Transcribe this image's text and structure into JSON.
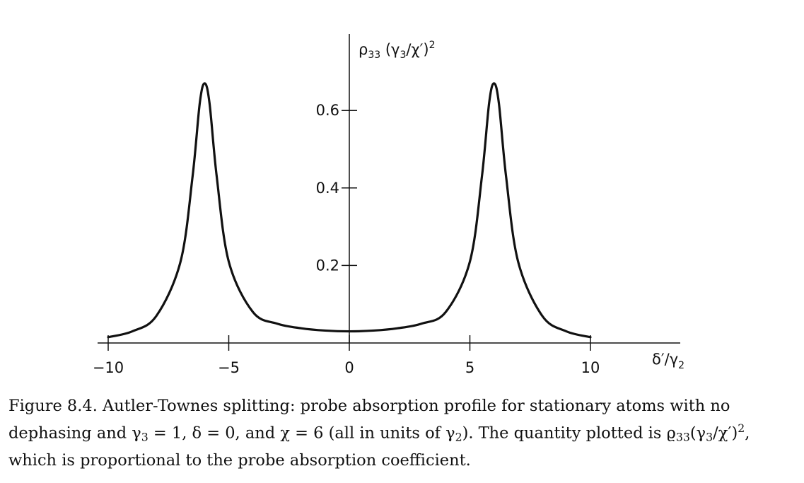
{
  "chart_data": {
    "type": "line",
    "x": [
      -10,
      -9,
      -8,
      -7,
      -6.5,
      -6.2,
      -6,
      -5.8,
      -5.5,
      -5,
      -4,
      -3,
      -2,
      -1,
      0,
      1,
      2,
      3,
      4,
      5,
      5.5,
      5.8,
      6,
      6.2,
      6.5,
      7,
      8,
      9,
      10
    ],
    "series": [
      {
        "values": [
          0.015,
          0.03,
          0.07,
          0.21,
          0.43,
          0.62,
          0.67,
          0.62,
          0.43,
          0.21,
          0.08,
          0.05,
          0.038,
          0.032,
          0.03,
          0.032,
          0.038,
          0.05,
          0.08,
          0.21,
          0.43,
          0.62,
          0.67,
          0.62,
          0.43,
          0.21,
          0.07,
          0.03,
          0.015
        ]
      }
    ],
    "xlim": [
      -10,
      10
    ],
    "ylim": [
      0,
      0.7
    ],
    "xticks": [
      -10,
      -5,
      0,
      5,
      10
    ],
    "xtick_labels": [
      "−10",
      "−5",
      "0",
      "5",
      "10"
    ],
    "yticks": [
      0.2,
      0.4,
      0.6
    ],
    "ytick_labels": [
      "0.2",
      "0.4",
      "0.6"
    ],
    "ylabel": {
      "a": "ρ",
      "a_sub": "33",
      "b": " (γ",
      "b_sub": "3",
      "c": "/χ′)",
      "c_sup": "2"
    },
    "xlabel": {
      "a": "δ′/γ",
      "a_sub": "2"
    },
    "grid": false,
    "color": "#111111"
  },
  "caption": {
    "line1": "Figure 8.4. Autler-Townes splitting: probe absorption profile for stationary atoms with no",
    "line2_a": "dephasing and γ",
    "line2_sub1": "3",
    "line2_b": " = 1, δ = 0, and χ = 6 (all in units of γ",
    "line2_sub2": "2",
    "line2_c": "). The quantity plotted is ϱ",
    "line2_sub3": "33",
    "line2_d": "(γ",
    "line2_sub4": "3",
    "line2_e": "/χ′)",
    "line2_sup": "2",
    "line2_f": ",",
    "line3": "which is proportional to the probe absorption coefficient."
  }
}
